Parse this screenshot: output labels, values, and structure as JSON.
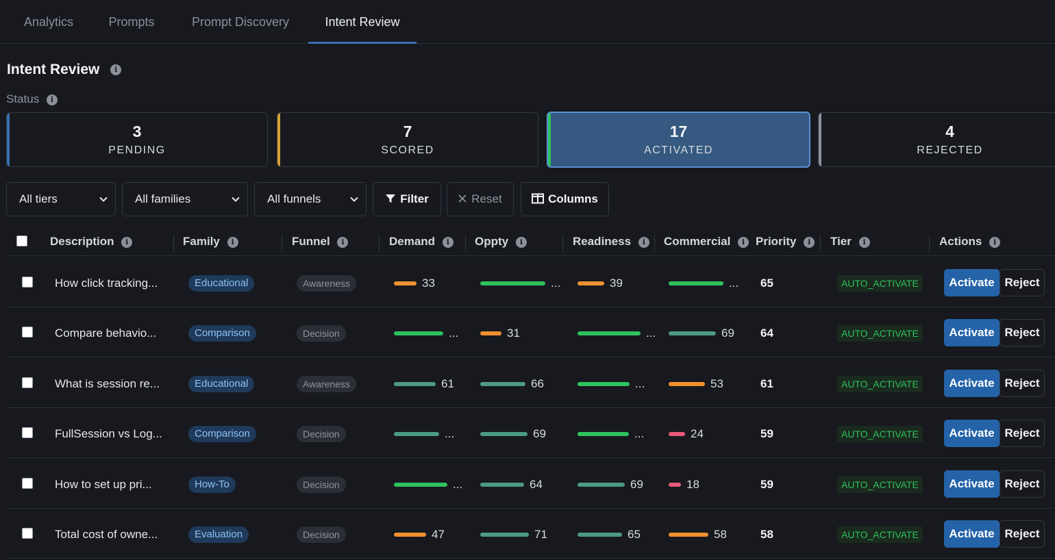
{
  "nav": {
    "tabs": [
      "Analytics",
      "Prompts",
      "Prompt Discovery",
      "Intent Review"
    ],
    "active": "Intent Review"
  },
  "page": {
    "title": "Intent Review",
    "status_label": "Status"
  },
  "status_cards": [
    {
      "count": "3",
      "label": "PENDING",
      "color": "#3a6fb0"
    },
    {
      "count": "7",
      "label": "SCORED",
      "color": "#d4a237"
    },
    {
      "count": "17",
      "label": "ACTIVATED",
      "color": "#2ec25c",
      "selected": true
    },
    {
      "count": "4",
      "label": "REJECTED",
      "color": "#8a8f98"
    }
  ],
  "filters": {
    "tiers": "All tiers",
    "families": "All families",
    "funnels": "All funnels",
    "filter_label": "Filter",
    "reset_label": "Reset",
    "columns_label": "Columns"
  },
  "columns": [
    "Description",
    "Family",
    "Funnel",
    "Demand",
    "Oppty",
    "Readiness",
    "Commercial",
    "Priority",
    "Tier",
    "Actions"
  ],
  "colors": {
    "green": "#2ec25c",
    "teal": "#4d9a85",
    "orange": "#f0912f",
    "pink": "#e85a7a",
    "accent": "#2463a8"
  },
  "rows": [
    {
      "description": "How click tracking...",
      "family": "Educational",
      "funnel": "Awareness",
      "demand": {
        "value": 33,
        "text": "33",
        "color": "orange"
      },
      "oppty": {
        "value": 95,
        "text": "...",
        "color": "green"
      },
      "readiness": {
        "value": 39,
        "text": "39",
        "color": "orange"
      },
      "commercial": {
        "value": 80,
        "text": "...",
        "color": "green"
      },
      "priority": "65",
      "tier": "AUTO_ACTIVATE",
      "activate": "Activate",
      "reject": "Reject"
    },
    {
      "description": "Compare behavio...",
      "family": "Comparison",
      "funnel": "Decision",
      "demand": {
        "value": 72,
        "text": "...",
        "color": "green"
      },
      "oppty": {
        "value": 31,
        "text": "31",
        "color": "orange"
      },
      "readiness": {
        "value": 92,
        "text": "...",
        "color": "green"
      },
      "commercial": {
        "value": 69,
        "text": "69",
        "color": "teal"
      },
      "priority": "64",
      "tier": "AUTO_ACTIVATE",
      "activate": "Activate",
      "reject": "Reject"
    },
    {
      "description": "What is session re...",
      "family": "Educational",
      "funnel": "Awareness",
      "demand": {
        "value": 61,
        "text": "61",
        "color": "teal"
      },
      "oppty": {
        "value": 66,
        "text": "66",
        "color": "teal"
      },
      "readiness": {
        "value": 76,
        "text": "...",
        "color": "green"
      },
      "commercial": {
        "value": 53,
        "text": "53",
        "color": "orange"
      },
      "priority": "61",
      "tier": "AUTO_ACTIVATE",
      "activate": "Activate",
      "reject": "Reject"
    },
    {
      "description": "FullSession vs Log...",
      "family": "Comparison",
      "funnel": "Decision",
      "demand": {
        "value": 66,
        "text": "...",
        "color": "teal"
      },
      "oppty": {
        "value": 69,
        "text": "69",
        "color": "teal"
      },
      "readiness": {
        "value": 75,
        "text": "...",
        "color": "green"
      },
      "commercial": {
        "value": 24,
        "text": "24",
        "color": "pink"
      },
      "priority": "59",
      "tier": "AUTO_ACTIVATE",
      "activate": "Activate",
      "reject": "Reject"
    },
    {
      "description": "How to set up pri...",
      "family": "How-To",
      "funnel": "Decision",
      "demand": {
        "value": 78,
        "text": "...",
        "color": "green"
      },
      "oppty": {
        "value": 64,
        "text": "64",
        "color": "teal"
      },
      "readiness": {
        "value": 69,
        "text": "69",
        "color": "teal"
      },
      "commercial": {
        "value": 18,
        "text": "18",
        "color": "pink"
      },
      "priority": "59",
      "tier": "AUTO_ACTIVATE",
      "activate": "Activate",
      "reject": "Reject"
    },
    {
      "description": "Total cost of owne...",
      "family": "Evaluation",
      "funnel": "Decision",
      "demand": {
        "value": 47,
        "text": "47",
        "color": "orange"
      },
      "oppty": {
        "value": 71,
        "text": "71",
        "color": "teal"
      },
      "readiness": {
        "value": 65,
        "text": "65",
        "color": "teal"
      },
      "commercial": {
        "value": 58,
        "text": "58",
        "color": "orange"
      },
      "priority": "58",
      "tier": "AUTO_ACTIVATE",
      "activate": "Activate",
      "reject": "Reject"
    }
  ]
}
